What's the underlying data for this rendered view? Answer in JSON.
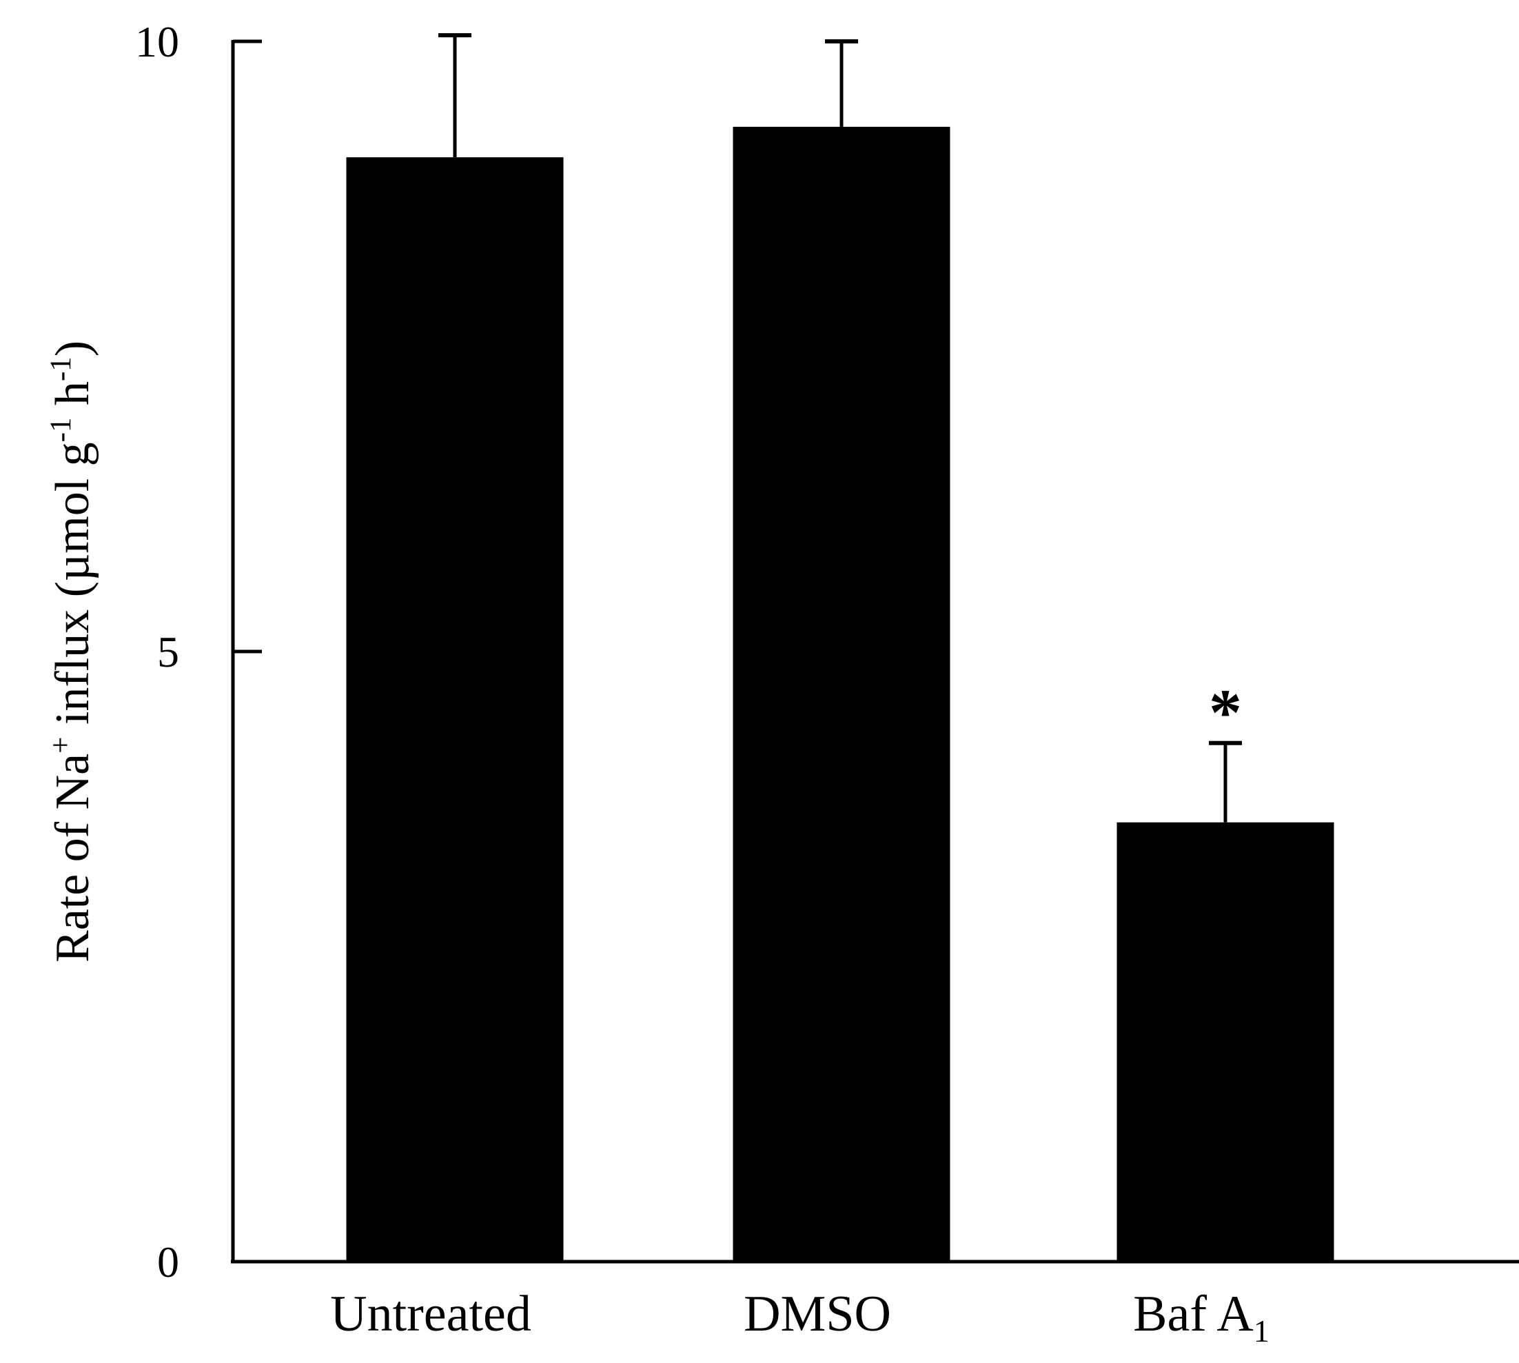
{
  "chart_data": {
    "type": "bar",
    "title": "",
    "xlabel": "",
    "ylabel": {
      "parts": [
        {
          "text": "Rate of Na",
          "sup": false
        },
        {
          "text": "+",
          "sup": true
        },
        {
          "text": " influx (µmol g",
          "sup": false
        },
        {
          "text": "-1",
          "sup": true
        },
        {
          "text": " h",
          "sup": false
        },
        {
          "text": "-1",
          "sup": true
        },
        {
          "text": ")",
          "sup": false
        }
      ]
    },
    "ylim": [
      0,
      10
    ],
    "yticks": [
      "0",
      "5",
      "10"
    ],
    "grid": false,
    "categories": [
      {
        "main": "Untreated",
        "sub": ""
      },
      {
        "main": "DMSO",
        "sub": ""
      },
      {
        "main": "Baf A",
        "sub": "1"
      }
    ],
    "values": [
      9.05,
      9.3,
      3.6
    ],
    "error_upper": [
      10.05,
      10.0,
      4.25
    ],
    "annotations": [
      "",
      "",
      "*"
    ],
    "colors": {
      "bar": "#000000",
      "axis": "#000000",
      "background": "#ffffff"
    }
  }
}
